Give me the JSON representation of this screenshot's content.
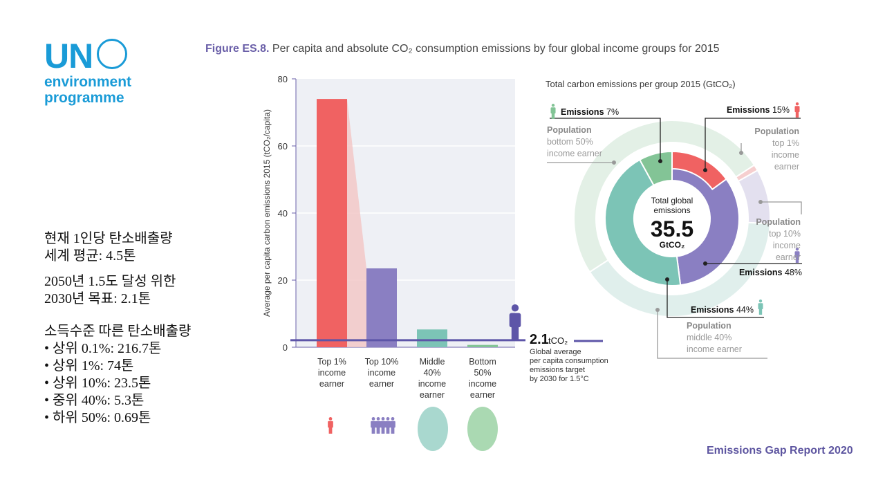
{
  "logo": {
    "un": "UN",
    "line1": "environment",
    "line2": "programme"
  },
  "figure_title": {
    "label": "Figure ES.8.",
    "text": " Per capita and absolute CO₂ consumption emissions by four global income groups for 2015"
  },
  "notes": {
    "p1": [
      "현재 1인당 탄소배출량",
      "세계 평균: 4.5톤"
    ],
    "p2": [
      "2050년 1.5도 달성 위한",
      "2030년 목표: 2.1톤"
    ],
    "p3_title": "소득수준 따른 탄소배출량",
    "bullets": [
      "상위 0.1%: 216.7톤",
      "상위 1%: 74톤",
      "상위 10%: 23.5톤",
      "중위 40%: 5.3톤",
      "하위 50%: 0.69톤"
    ]
  },
  "footer": "Emissions Gap Report 2020",
  "colors": {
    "red": "#f06262",
    "purple": "#8a7fc2",
    "teal": "#7cc4b6",
    "green": "#83c496",
    "line": "#5d55a8"
  },
  "chart_data": [
    {
      "type": "bar",
      "ylabel": "Average per capita carbon emissions 2015 (tCO₂/capita)",
      "ylim": [
        0,
        80
      ],
      "yticks": [
        0,
        20,
        40,
        60,
        80
      ],
      "categories": [
        "Top 1% income earner",
        "Top 10% income earner",
        "Middle 40% income earner",
        "Bottom 50% income earner"
      ],
      "category_lines": [
        [
          "Top 1%",
          "income",
          "earner"
        ],
        [
          "Top 10%",
          "income",
          "earner"
        ],
        [
          "Middle",
          "40%",
          "income",
          "earner"
        ],
        [
          "Bottom",
          "50%",
          "income",
          "earner"
        ]
      ],
      "values": [
        74,
        23.5,
        5.3,
        0.69
      ],
      "target": {
        "value": 2.1,
        "value_label": "2.1",
        "unit": "tCO₂",
        "desc": [
          "Global average",
          "per capita consumption",
          "emissions target",
          "by 2030 for 1.5°C"
        ]
      }
    },
    {
      "type": "pie",
      "title": "Total carbon emissions per group 2015 (GtCO₂)",
      "center": {
        "line1": "Total global",
        "line2": "emissions",
        "value": "35.5",
        "unit": "GtCO₂"
      },
      "emissions": [
        {
          "group": "Top 1%",
          "label": "Emissions",
          "pct": 15
        },
        {
          "group": "Top 10%",
          "label": "Emissions",
          "pct": 48
        },
        {
          "group": "Middle 40%",
          "label": "Emissions",
          "pct": 44
        },
        {
          "group": "Bottom 50%",
          "label": "Emissions",
          "pct": 7
        }
      ],
      "population": [
        {
          "group": "Bottom 50%",
          "pct": 50,
          "lines": [
            "Population",
            "bottom 50%",
            "income earner"
          ]
        },
        {
          "group": "Top 1%",
          "pct": 1,
          "lines": [
            "Population",
            "top 1%",
            "income",
            "earner"
          ]
        },
        {
          "group": "Top 10%",
          "pct": 9,
          "lines": [
            "Population",
            "top 10%",
            "income",
            "earner"
          ]
        },
        {
          "group": "Middle 40%",
          "pct": 40,
          "lines": [
            "Population",
            "middle 40%",
            "income earner"
          ]
        }
      ]
    }
  ]
}
